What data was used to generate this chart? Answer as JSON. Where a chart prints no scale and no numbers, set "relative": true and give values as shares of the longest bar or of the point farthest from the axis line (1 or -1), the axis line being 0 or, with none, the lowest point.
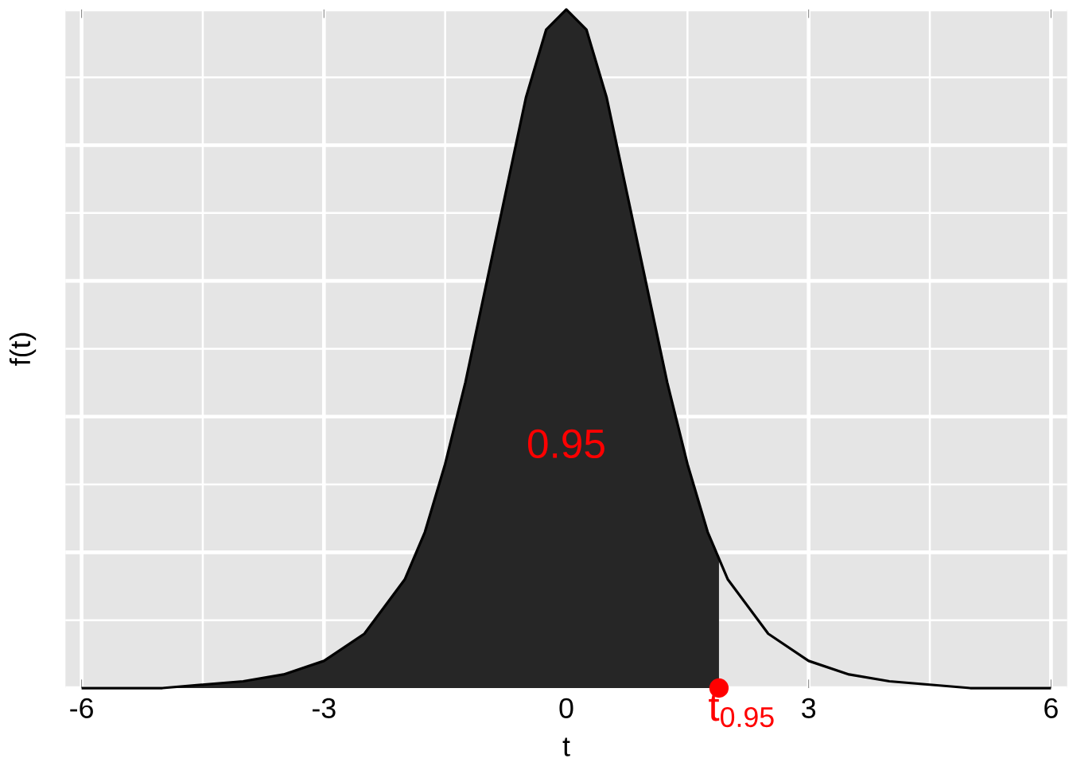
{
  "chart_data": {
    "type": "line",
    "xlabel": "t",
    "ylabel": "f(t)",
    "relative": true,
    "xlim": [
      -6.2,
      6.2
    ],
    "xticks": [
      -6,
      -3,
      0,
      3,
      6
    ],
    "grid": true,
    "series": [
      {
        "type": "area",
        "color": "#262626",
        "x": [
          -6,
          -5,
          -4,
          -3.5,
          -3,
          -2.5,
          -2,
          -1.75,
          -1.5,
          -1.25,
          -1,
          -0.75,
          -0.5,
          -0.25,
          0,
          0.25,
          0.5,
          0.75,
          1,
          1.25,
          1.5,
          1.75,
          1.89
        ],
        "values": [
          0.0,
          0.0,
          0.01,
          0.02,
          0.04,
          0.08,
          0.16,
          0.23,
          0.33,
          0.45,
          0.59,
          0.73,
          0.87,
          0.97,
          1,
          0.97,
          0.87,
          0.73,
          0.59,
          0.45,
          0.33,
          0.23,
          0.19
        ]
      },
      {
        "color": "#000000",
        "x": [
          -6,
          -5,
          -4,
          -3.5,
          -3,
          -2.5,
          -2,
          -1.75,
          -1.5,
          -1.25,
          -1,
          -0.75,
          -0.5,
          -0.25,
          0,
          0.25,
          0.5,
          0.75,
          1,
          1.25,
          1.5,
          1.75,
          2,
          2.5,
          3,
          3.5,
          4,
          5,
          6
        ],
        "values": [
          0.0,
          0.0,
          0.01,
          0.02,
          0.04,
          0.08,
          0.16,
          0.23,
          0.33,
          0.45,
          0.59,
          0.73,
          0.87,
          0.97,
          1,
          0.97,
          0.87,
          0.73,
          0.59,
          0.45,
          0.33,
          0.23,
          0.16,
          0.08,
          0.04,
          0.02,
          0.01,
          0.0,
          0.0
        ]
      },
      {
        "type": "scatter",
        "color": "#ff0000",
        "marker": "circle",
        "x": [
          1.89
        ],
        "values": [
          0
        ]
      }
    ],
    "annotations": [
      "0.95",
      {
        "text": "t$_{0.95}$",
        "x": 1.89,
        "y": 0
      }
    ]
  }
}
